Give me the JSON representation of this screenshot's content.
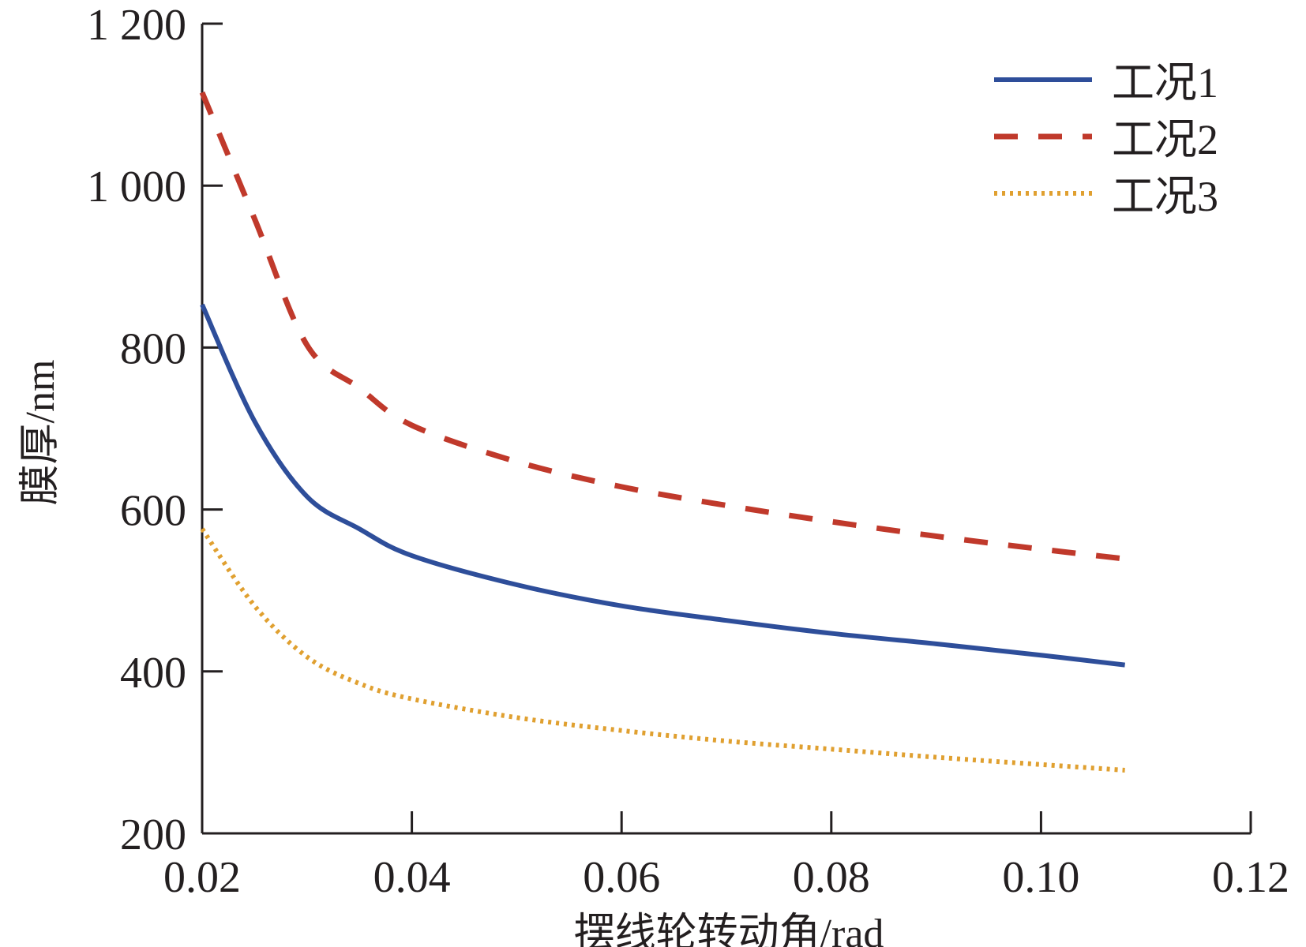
{
  "chart_data": {
    "type": "line",
    "title": "",
    "xlabel": "摆线轮转动角/rad",
    "ylabel": "膜厚/nm",
    "xlim": [
      0.02,
      0.12
    ],
    "ylim": [
      200,
      1200
    ],
    "xticks": [
      "0.02",
      "0.04",
      "0.06",
      "0.08",
      "0.10",
      "0.12"
    ],
    "xtick_values": [
      0.02,
      0.04,
      0.06,
      0.08,
      0.1,
      0.12
    ],
    "yticks": [
      "200",
      "400",
      "600",
      "800",
      "1 000",
      "1 200"
    ],
    "ytick_values": [
      200,
      400,
      600,
      800,
      1000,
      1200
    ],
    "grid": false,
    "legend_position": "top-right",
    "x": [
      0.02,
      0.025,
      0.03,
      0.035,
      0.04,
      0.05,
      0.06,
      0.07,
      0.08,
      0.09,
      0.1,
      0.108
    ],
    "series": [
      {
        "name": "工况1",
        "color": "#2e4e9a",
        "style": "solid",
        "values": [
          853,
          709,
          616,
          576,
          543,
          507,
          481,
          463,
          447,
          434,
          420,
          408
        ]
      },
      {
        "name": "工况2",
        "color": "#c0392b",
        "style": "dashed",
        "values": [
          1115,
          959,
          803,
          750,
          704,
          659,
          628,
          605,
          585,
          567,
          551,
          539
        ]
      },
      {
        "name": "工况3",
        "color": "#e0a030",
        "style": "dotted",
        "values": [
          576,
          481,
          418,
          385,
          366,
          343,
          327,
          314,
          304,
          294,
          285,
          278
        ]
      }
    ]
  }
}
